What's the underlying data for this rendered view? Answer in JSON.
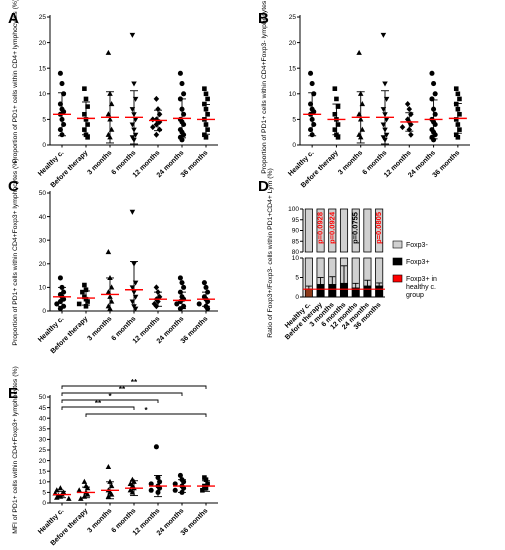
{
  "chart_data": [
    {
      "panel": "A",
      "type": "scatter",
      "ylabel": "Proportion of PD1+ cells within CD4+ lymphocytes (%)",
      "categories": [
        "Healthy c.",
        "Before therapy",
        "3 months",
        "6 months",
        "12 months",
        "24 months",
        "36 months"
      ],
      "ylim": [
        0,
        25
      ],
      "yticks": [
        0,
        5,
        10,
        15,
        20,
        25
      ],
      "markers": [
        "circle",
        "square",
        "triangle",
        "triangle-down",
        "diamond",
        "circle",
        "square"
      ],
      "means": [
        6.0,
        5.2,
        5.4,
        5.4,
        4.8,
        5.2,
        5.0
      ],
      "sds": [
        4.2,
        3.2,
        5.0,
        5.2,
        2.0,
        3.8,
        2.9
      ],
      "points": [
        [
          14,
          12,
          10,
          8,
          7,
          6.5,
          6,
          5,
          4,
          3,
          2
        ],
        [
          11,
          9,
          7.5,
          6,
          5,
          4,
          3,
          2,
          1.5
        ],
        [
          18,
          10,
          8,
          6,
          5,
          3,
          2,
          1.5
        ],
        [
          21.5,
          12,
          9,
          7,
          6,
          5,
          4,
          3,
          2,
          1.5,
          1
        ],
        [
          9,
          7,
          6,
          5,
          5,
          4.5,
          4,
          3.5,
          3,
          2
        ],
        [
          14,
          12,
          10,
          9,
          7,
          6,
          5,
          4.5,
          4,
          3,
          2.5,
          2,
          1.5,
          1
        ],
        [
          11,
          10,
          9,
          8,
          7,
          6,
          5,
          4,
          3,
          2,
          1.5
        ]
      ]
    },
    {
      "panel": "B",
      "type": "scatter",
      "ylabel": "Proportion of PD1+ cells within CD4+Foxp3- lymphocytes (%)",
      "categories": [
        "Healthy c.",
        "Before therapy",
        "3 months",
        "6 months",
        "12 months",
        "24 months",
        "36 months"
      ],
      "ylim": [
        0,
        25
      ],
      "yticks": [
        0,
        5,
        10,
        15,
        20,
        25
      ],
      "markers": [
        "circle",
        "square",
        "triangle",
        "triangle-down",
        "diamond",
        "circle",
        "square"
      ],
      "means": [
        6.0,
        5.0,
        5.4,
        5.4,
        4.5,
        5.0,
        5.2
      ],
      "sds": [
        4.2,
        3.0,
        5.0,
        5.2,
        1.8,
        3.8,
        2.9
      ],
      "points": [
        [
          14,
          12,
          10,
          8,
          7,
          6.5,
          6,
          5,
          4,
          3,
          2
        ],
        [
          11,
          9,
          7.5,
          6,
          5,
          4,
          3,
          2,
          1.5
        ],
        [
          18,
          10,
          8,
          6,
          5,
          3,
          2,
          1.5
        ],
        [
          21.5,
          12,
          9,
          7,
          6,
          5,
          4,
          3,
          2,
          1.5,
          1
        ],
        [
          8,
          7,
          6,
          5,
          4.5,
          4,
          3.5,
          3,
          2
        ],
        [
          14,
          12,
          10,
          9,
          7,
          6,
          5,
          4.5,
          4,
          3,
          2.5,
          2,
          1.5,
          1
        ],
        [
          11,
          10,
          9,
          8,
          7,
          6,
          5,
          4,
          3,
          2,
          1.5
        ]
      ]
    },
    {
      "panel": "C",
      "type": "scatter",
      "ylabel": "Proportion of PD1+ cells within CD4+Foxp3+ lymphocytes (%)",
      "categories": [
        "Healthy c.",
        "Before therapy",
        "3 months",
        "6 months",
        "12 months",
        "24 months",
        "36 months"
      ],
      "ylim": [
        0,
        50
      ],
      "yticks": [
        0,
        10,
        20,
        30,
        40,
        50
      ],
      "markers": [
        "circle",
        "square",
        "triangle",
        "triangle-down",
        "diamond",
        "circle",
        "circle"
      ],
      "means": [
        6.0,
        5.5,
        7.0,
        9.0,
        5.0,
        4.5,
        5.0
      ],
      "sds": [
        4.0,
        3.0,
        7.0,
        12.0,
        3.0,
        3.5,
        3.0
      ],
      "points": [
        [
          14,
          10,
          8,
          7,
          6,
          5,
          4,
          3,
          2,
          1
        ],
        [
          11,
          9,
          8,
          6,
          5,
          4,
          3,
          2
        ],
        [
          25,
          14,
          10,
          8,
          6,
          4,
          2,
          1
        ],
        [
          42,
          20,
          12,
          10,
          8,
          6,
          4,
          2,
          1
        ],
        [
          10,
          8,
          6,
          5,
          4,
          3,
          2
        ],
        [
          14,
          12,
          10,
          8,
          6,
          5,
          4,
          3,
          2,
          1
        ],
        [
          12,
          10,
          8,
          6,
          5,
          4,
          3,
          2,
          1
        ]
      ]
    },
    {
      "panel": "D",
      "type": "bar",
      "ylabel": "Ratio of Foxp3+/Foxp3- cells within PD1+CD4+ Lym (%)",
      "categories": [
        "Healthy c.",
        "Before therapy",
        "3 months",
        "6 months",
        "12 months",
        "24 months",
        "36 months"
      ],
      "yticks_top": [
        80,
        85,
        90,
        95,
        100
      ],
      "yticks_bottom": [
        0,
        5,
        10
      ],
      "series": [
        {
          "name": "Foxp3-",
          "color": "#d0d0d0"
        },
        {
          "name": "Foxp3+",
          "color": "#000000"
        },
        {
          "name": "Foxp3+ in healthy c. group",
          "color": "#ff0000"
        }
      ],
      "foxp3_plus": [
        2.0,
        3.2,
        3.2,
        3.5,
        2.3,
        2.8,
        2.8
      ],
      "sd": [
        0.8,
        1.8,
        2.0,
        4.5,
        1.2,
        1.5,
        0.8
      ],
      "pvalues": [
        "",
        "p=0.0928",
        "p=0.0924",
        "",
        "p=0.0755",
        "",
        "p=0.0805"
      ],
      "pvalue_colors": [
        "",
        "#ff0000",
        "#ff0000",
        "",
        "#000000",
        "",
        "#ff0000"
      ]
    },
    {
      "panel": "E",
      "type": "scatter",
      "ylabel": "MFI of PD1+ cells within CD4+Foxp3+ lymphocytes (%)",
      "categories": [
        "Healthy c.",
        "Before therapy",
        "3 months",
        "6 months",
        "12 months",
        "24 months",
        "36 months"
      ],
      "ylim": [
        0,
        50
      ],
      "yticks": [
        0,
        5,
        10,
        15,
        20,
        25,
        30,
        35,
        40,
        45,
        50
      ],
      "markers": [
        "triangle",
        "triangle",
        "triangle",
        "triangle",
        "circle",
        "circle",
        "square"
      ],
      "means": [
        4.0,
        5.0,
        6.0,
        7.0,
        8.0,
        8.0,
        8.0
      ],
      "sds": [
        1.5,
        2.5,
        4.0,
        3.5,
        5.0,
        3.0,
        2.5
      ],
      "points": [
        [
          7,
          6,
          5,
          4.5,
          4,
          3.5,
          3,
          2.5,
          2
        ],
        [
          10,
          8,
          7,
          6,
          5,
          4,
          3,
          2
        ],
        [
          17,
          10,
          8,
          6,
          5,
          4,
          3
        ],
        [
          11,
          10,
          9,
          8,
          7,
          6,
          5
        ],
        [
          26.5,
          12,
          10,
          9,
          8,
          7,
          6,
          5
        ],
        [
          13,
          11,
          10,
          9,
          8,
          7,
          6,
          5
        ],
        [
          12,
          11,
          9,
          8,
          7,
          6
        ]
      ],
      "significance": [
        {
          "from": 0,
          "to": 6,
          "label": "**"
        },
        {
          "from": 0,
          "to": 5,
          "label": "**"
        },
        {
          "from": 0,
          "to": 4,
          "label": "*"
        },
        {
          "from": 0,
          "to": 3,
          "label": "**"
        },
        {
          "from": 1,
          "to": 6,
          "label": "*"
        }
      ]
    }
  ]
}
